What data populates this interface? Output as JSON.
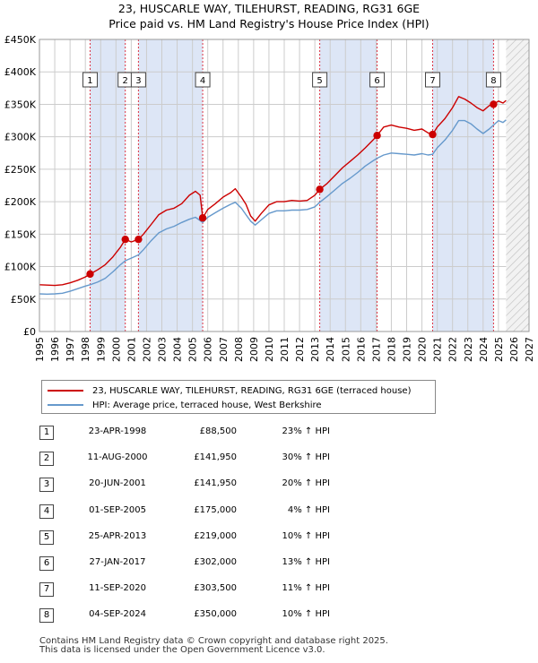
{
  "header": {
    "title": "23, HUSCARLE WAY, TILEHURST, READING, RG31 6GE",
    "subtitle": "Price paid vs. HM Land Registry's House Price Index (HPI)"
  },
  "legend": {
    "property_label": "23, HUSCARLE WAY, TILEHURST, READING, RG31 6GE (terraced house)",
    "hpi_label": "HPI: Average price, terraced house, West Berkshire"
  },
  "colors": {
    "property": "#cc0000",
    "hpi": "#6699cc",
    "band": "#dde6f6",
    "marker_line": "#dd3344",
    "grid": "#cccccc"
  },
  "chart_data": {
    "type": "line",
    "title": "Price paid vs. HM Land Registry's House Price Index (HPI)",
    "xlabel": "",
    "ylabel": "",
    "xlim": [
      1995,
      2027
    ],
    "ylim": [
      0,
      450000
    ],
    "y_ticks": [
      {
        "value": 0,
        "label": "£0"
      },
      {
        "value": 50000,
        "label": "£50K"
      },
      {
        "value": 100000,
        "label": "£100K"
      },
      {
        "value": 150000,
        "label": "£150K"
      },
      {
        "value": 200000,
        "label": "£200K"
      },
      {
        "value": 250000,
        "label": "£250K"
      },
      {
        "value": 300000,
        "label": "£300K"
      },
      {
        "value": 350000,
        "label": "£350K"
      },
      {
        "value": 400000,
        "label": "£400K"
      },
      {
        "value": 450000,
        "label": "£450K"
      }
    ],
    "x_ticks": [
      "1995",
      "1996",
      "1997",
      "1998",
      "1999",
      "2000",
      "2001",
      "2002",
      "2003",
      "2004",
      "2005",
      "2006",
      "2007",
      "2008",
      "2009",
      "2010",
      "2011",
      "2012",
      "2013",
      "2014",
      "2015",
      "2016",
      "2017",
      "2018",
      "2019",
      "2020",
      "2021",
      "2022",
      "2023",
      "2024",
      "2025",
      "2026",
      "2027"
    ],
    "forecast_start": 2025.5,
    "shaded_periods": [
      [
        1998.31,
        2000.61
      ],
      [
        2001.47,
        2005.67
      ],
      [
        2013.32,
        2017.07
      ],
      [
        2020.7,
        2024.68
      ]
    ],
    "series": [
      {
        "name": "23, HUSCARLE WAY, TILEHURST, READING, RG31 6GE (terraced house)",
        "points": [
          [
            1995.0,
            72000
          ],
          [
            1995.5,
            71500
          ],
          [
            1996.0,
            71000
          ],
          [
            1996.5,
            72000
          ],
          [
            1997.0,
            75000
          ],
          [
            1997.5,
            79000
          ],
          [
            1998.0,
            84000
          ],
          [
            1998.31,
            88500
          ],
          [
            1998.8,
            95000
          ],
          [
            1999.3,
            103000
          ],
          [
            1999.8,
            115000
          ],
          [
            2000.3,
            130000
          ],
          [
            2000.61,
            141950
          ],
          [
            2001.0,
            138000
          ],
          [
            2001.47,
            141950
          ],
          [
            2001.8,
            150000
          ],
          [
            2002.3,
            165000
          ],
          [
            2002.8,
            180000
          ],
          [
            2003.3,
            187000
          ],
          [
            2003.8,
            190000
          ],
          [
            2004.3,
            197000
          ],
          [
            2004.8,
            210000
          ],
          [
            2005.2,
            216000
          ],
          [
            2005.5,
            210000
          ],
          [
            2005.67,
            175000
          ],
          [
            2006.0,
            188000
          ],
          [
            2006.5,
            197000
          ],
          [
            2007.0,
            207000
          ],
          [
            2007.5,
            214000
          ],
          [
            2007.8,
            220000
          ],
          [
            2008.2,
            207000
          ],
          [
            2008.5,
            196000
          ],
          [
            2008.8,
            178000
          ],
          [
            2009.1,
            170000
          ],
          [
            2009.5,
            182000
          ],
          [
            2010.0,
            195000
          ],
          [
            2010.5,
            200000
          ],
          [
            2011.0,
            200000
          ],
          [
            2011.5,
            202000
          ],
          [
            2012.0,
            201000
          ],
          [
            2012.5,
            202000
          ],
          [
            2013.0,
            210000
          ],
          [
            2013.32,
            219000
          ],
          [
            2013.8,
            228000
          ],
          [
            2014.3,
            240000
          ],
          [
            2014.8,
            252000
          ],
          [
            2015.3,
            262000
          ],
          [
            2015.8,
            272000
          ],
          [
            2016.3,
            283000
          ],
          [
            2016.8,
            295000
          ],
          [
            2017.07,
            302000
          ],
          [
            2017.5,
            315000
          ],
          [
            2018.0,
            318000
          ],
          [
            2018.5,
            315000
          ],
          [
            2019.0,
            313000
          ],
          [
            2019.5,
            310000
          ],
          [
            2020.0,
            312000
          ],
          [
            2020.4,
            306000
          ],
          [
            2020.7,
            303500
          ],
          [
            2021.0,
            315000
          ],
          [
            2021.5,
            328000
          ],
          [
            2022.0,
            345000
          ],
          [
            2022.4,
            362000
          ],
          [
            2022.8,
            358000
          ],
          [
            2023.2,
            352000
          ],
          [
            2023.6,
            345000
          ],
          [
            2024.0,
            340000
          ],
          [
            2024.4,
            348000
          ],
          [
            2024.68,
            350000
          ],
          [
            2025.0,
            355000
          ],
          [
            2025.3,
            352000
          ],
          [
            2025.5,
            356000
          ]
        ]
      },
      {
        "name": "HPI: Average price, terraced house, West Berkshire",
        "points": [
          [
            1995.0,
            58000
          ],
          [
            1995.5,
            57500
          ],
          [
            1996.0,
            58000
          ],
          [
            1996.5,
            59000
          ],
          [
            1997.0,
            62000
          ],
          [
            1997.5,
            66000
          ],
          [
            1998.0,
            70000
          ],
          [
            1998.31,
            72000
          ],
          [
            1998.8,
            76000
          ],
          [
            1999.3,
            82000
          ],
          [
            1999.8,
            92000
          ],
          [
            2000.3,
            103000
          ],
          [
            2000.61,
            109000
          ],
          [
            2001.0,
            113000
          ],
          [
            2001.47,
            118000
          ],
          [
            2001.8,
            126000
          ],
          [
            2002.3,
            140000
          ],
          [
            2002.8,
            152000
          ],
          [
            2003.3,
            158000
          ],
          [
            2003.8,
            162000
          ],
          [
            2004.3,
            168000
          ],
          [
            2004.8,
            173000
          ],
          [
            2005.2,
            176000
          ],
          [
            2005.67,
            168000
          ],
          [
            2006.0,
            176000
          ],
          [
            2006.5,
            183000
          ],
          [
            2007.0,
            190000
          ],
          [
            2007.5,
            196000
          ],
          [
            2007.8,
            199000
          ],
          [
            2008.2,
            190000
          ],
          [
            2008.5,
            180000
          ],
          [
            2008.8,
            170000
          ],
          [
            2009.1,
            164000
          ],
          [
            2009.5,
            172000
          ],
          [
            2010.0,
            182000
          ],
          [
            2010.5,
            186000
          ],
          [
            2011.0,
            186000
          ],
          [
            2011.5,
            187000
          ],
          [
            2012.0,
            187000
          ],
          [
            2012.5,
            188000
          ],
          [
            2013.0,
            192000
          ],
          [
            2013.32,
            199000
          ],
          [
            2013.8,
            208000
          ],
          [
            2014.3,
            218000
          ],
          [
            2014.8,
            228000
          ],
          [
            2015.3,
            236000
          ],
          [
            2015.8,
            245000
          ],
          [
            2016.3,
            255000
          ],
          [
            2016.8,
            263000
          ],
          [
            2017.07,
            267000
          ],
          [
            2017.5,
            272000
          ],
          [
            2018.0,
            275000
          ],
          [
            2018.5,
            274000
          ],
          [
            2019.0,
            273000
          ],
          [
            2019.5,
            272000
          ],
          [
            2020.0,
            274000
          ],
          [
            2020.4,
            272000
          ],
          [
            2020.7,
            273000
          ],
          [
            2021.0,
            283000
          ],
          [
            2021.5,
            295000
          ],
          [
            2022.0,
            310000
          ],
          [
            2022.4,
            325000
          ],
          [
            2022.8,
            325000
          ],
          [
            2023.2,
            320000
          ],
          [
            2023.6,
            312000
          ],
          [
            2024.0,
            305000
          ],
          [
            2024.4,
            312000
          ],
          [
            2024.68,
            318000
          ],
          [
            2025.0,
            325000
          ],
          [
            2025.3,
            322000
          ],
          [
            2025.5,
            326000
          ]
        ]
      }
    ],
    "sales_markers": [
      {
        "label": "1",
        "x": 1998.31,
        "y": 88500
      },
      {
        "label": "2",
        "x": 2000.61,
        "y": 141950
      },
      {
        "label": "3",
        "x": 2001.47,
        "y": 141950
      },
      {
        "label": "4",
        "x": 2005.67,
        "y": 175000
      },
      {
        "label": "5",
        "x": 2013.32,
        "y": 219000
      },
      {
        "label": "6",
        "x": 2017.07,
        "y": 302000
      },
      {
        "label": "7",
        "x": 2020.7,
        "y": 303500
      },
      {
        "label": "8",
        "x": 2024.68,
        "y": 350000
      }
    ]
  },
  "sales": [
    {
      "num": "1",
      "date": "23-APR-1998",
      "price": "£88,500",
      "hpi": "23% ↑ HPI"
    },
    {
      "num": "2",
      "date": "11-AUG-2000",
      "price": "£141,950",
      "hpi": "30% ↑ HPI"
    },
    {
      "num": "3",
      "date": "20-JUN-2001",
      "price": "£141,950",
      "hpi": "20% ↑ HPI"
    },
    {
      "num": "4",
      "date": "01-SEP-2005",
      "price": "£175,000",
      "hpi": "4% ↑ HPI"
    },
    {
      "num": "5",
      "date": "25-APR-2013",
      "price": "£219,000",
      "hpi": "10% ↑ HPI"
    },
    {
      "num": "6",
      "date": "27-JAN-2017",
      "price": "£302,000",
      "hpi": "13% ↑ HPI"
    },
    {
      "num": "7",
      "date": "11-SEP-2020",
      "price": "£303,500",
      "hpi": "11% ↑ HPI"
    },
    {
      "num": "8",
      "date": "04-SEP-2024",
      "price": "£350,000",
      "hpi": "10% ↑ HPI"
    }
  ],
  "footer": {
    "line1": "Contains HM Land Registry data © Crown copyright and database right 2025.",
    "line2": "This data is licensed under the Open Government Licence v3.0."
  }
}
